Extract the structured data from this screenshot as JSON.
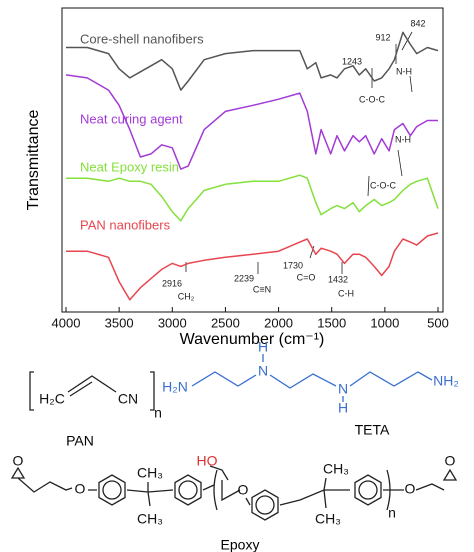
{
  "chart_data": {
    "type": "line",
    "y_label": "Transmittance",
    "x_label": "Wavenumber (cm⁻¹)",
    "x": [
      4000,
      3800,
      3600,
      3500,
      3400,
      3300,
      3200,
      3100,
      3000,
      2920,
      2850,
      2700,
      2500,
      2240,
      2000,
      1800,
      1730,
      1650,
      1600,
      1510,
      1450,
      1380,
      1300,
      1240,
      1180,
      1100,
      1030,
      960,
      910,
      830,
      760,
      700,
      600,
      500
    ],
    "xlim": [
      4000,
      500
    ],
    "xticks": [
      4000,
      3500,
      3000,
      2500,
      2000,
      1500,
      1000,
      500
    ],
    "ylim": [
      0,
      100
    ],
    "series": [
      {
        "name": "Core-shell nanofibers",
        "color": "#555555",
        "values": [
          87,
          87,
          85,
          80,
          77,
          79,
          81,
          83,
          80,
          73,
          76,
          83,
          85,
          86,
          86,
          86,
          80,
          82,
          77,
          78,
          77,
          80,
          81,
          78,
          80,
          76,
          77,
          80,
          83,
          92,
          88,
          85,
          87,
          86
        ]
      },
      {
        "name": "Neat curing agent",
        "color": "#a23ad6",
        "values": [
          78,
          77,
          73,
          68,
          60,
          51,
          52,
          55,
          54,
          47,
          48,
          60,
          66,
          68,
          70,
          72,
          66,
          52,
          60,
          52,
          58,
          53,
          58,
          56,
          58,
          52,
          57,
          53,
          60,
          62,
          58,
          61,
          63,
          63
        ]
      },
      {
        "name": "Neat Epoxy resin",
        "color": "#84e03a",
        "values": [
          44,
          44,
          43,
          44,
          43,
          43,
          42,
          38,
          33,
          30,
          34,
          40,
          42,
          43,
          43,
          45,
          44,
          36,
          32,
          34,
          35,
          34,
          36,
          33,
          35,
          37,
          35,
          36,
          37,
          40,
          42,
          43,
          44,
          34
        ]
      },
      {
        "name": "PAN nanofibers",
        "color": "#e8464f",
        "values": [
          20,
          20,
          18,
          10,
          4,
          8,
          11,
          14,
          16,
          15,
          16,
          17,
          18,
          19,
          20,
          23,
          24,
          19,
          21,
          20,
          19,
          16,
          19,
          19,
          18,
          15,
          12,
          15,
          20,
          24,
          23,
          22,
          25,
          26
        ]
      }
    ],
    "annotations": [
      "1243",
      "912",
      "842",
      "N-H",
      "C-O-C",
      "N-H",
      "C-O-C",
      "2916",
      "CH₂",
      "2239",
      "C≡N",
      "1730",
      "C=O",
      "1432",
      "C-H"
    ]
  },
  "structures": {
    "pan": {
      "label": "PAN",
      "atoms": [
        "H₂C",
        "CN",
        "n"
      ]
    },
    "teta": {
      "label": "TETA",
      "atoms": [
        "H₂N",
        "N",
        "H",
        "N",
        "H",
        "NH₂"
      ]
    },
    "epoxy": {
      "label": "Epoxy",
      "atoms": [
        "O",
        "O",
        "CH₃",
        "CH₃",
        "HO",
        "O",
        "CH₃",
        "CH₃",
        "O",
        "n",
        "O"
      ]
    }
  }
}
